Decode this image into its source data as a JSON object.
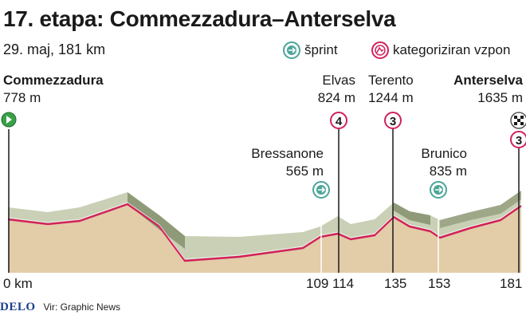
{
  "header": {
    "title": "17. etapa: Commezzadura–Anterselva",
    "subtitle": "29. maj, 181 km"
  },
  "legend": {
    "sprint_label": "šprint",
    "climb_label": "kategoriziran vzpon"
  },
  "places": {
    "start": {
      "name": "Commezzadura",
      "elevation": "778 m"
    },
    "elvas": {
      "name": "Elvas",
      "elevation": "824 m",
      "category": "4"
    },
    "terento": {
      "name": "Terento",
      "elevation": "1244 m",
      "category": "3"
    },
    "finish": {
      "name": "Anterselva",
      "elevation": "1635 m",
      "category": "3"
    },
    "bressanone": {
      "name": "Bressanone",
      "elevation": "565 m"
    },
    "brunico": {
      "name": "Brunico",
      "elevation": "835 m"
    }
  },
  "distance_axis": {
    "start_label": "0 km",
    "markers": [
      "109",
      "114",
      "135",
      "153",
      "181"
    ]
  },
  "footer": {
    "logo": "DELO",
    "source": "Vir: Graphic News"
  },
  "colors": {
    "ground": "#e3cca8",
    "top_face": "#c9d0b5",
    "side_face": "#8f9a78",
    "route_line": "#d1225a",
    "sprint": "#4aa59a",
    "climb": "#d1225a",
    "start": "#3aa14a"
  }
}
